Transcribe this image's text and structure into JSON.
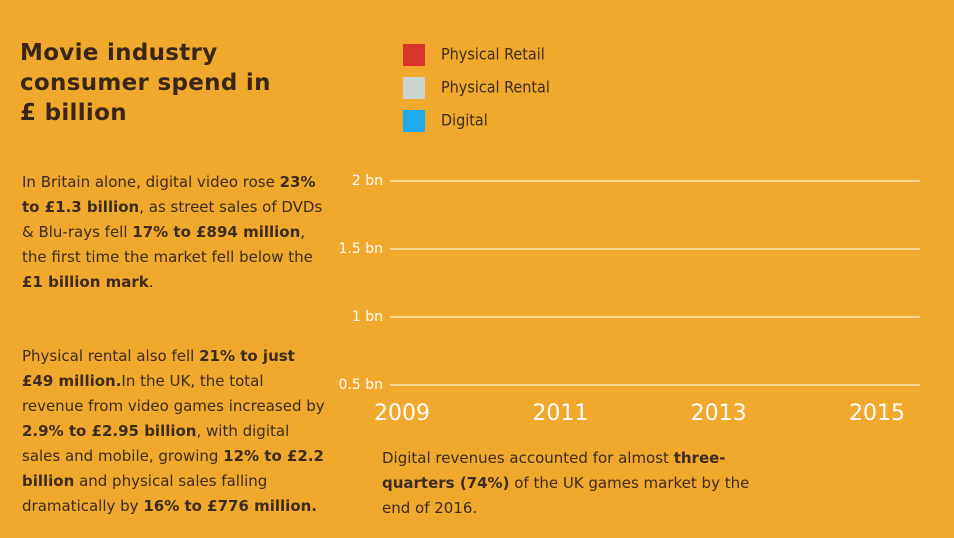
{
  "chart_data": {
    "type": "line",
    "title": "Movie industry consumer spend in £ billion",
    "categories": [
      "2009",
      "2011",
      "2013",
      "2015"
    ],
    "series": [
      {
        "name": "Physical Retail",
        "color": "#d9342b",
        "values": [
          null,
          null,
          null,
          null
        ]
      },
      {
        "name": "Physical Rental",
        "color": "#c9d3d0",
        "values": [
          null,
          null,
          null,
          null
        ]
      },
      {
        "name": "Digital",
        "color": "#1eaaf1",
        "values": [
          null,
          null,
          null,
          null
        ]
      }
    ],
    "ylim": [
      0.5,
      2
    ],
    "yticks": [
      {
        "value": 0.5,
        "label": "0.5 bn"
      },
      {
        "value": 1,
        "label": "1 bn"
      },
      {
        "value": 1.5,
        "label": "1.5 bn"
      },
      {
        "value": 2,
        "label": "2 bn"
      }
    ],
    "grid": true,
    "annotations": [
      [
        "In Britain alone, digital video rose ",
        "23% to £1.3 billion",
        ", as street sales of DVDs & Blu-rays fell ",
        "17% to £894 million",
        ", the first time the market fell below the ",
        "£1 billion mark",
        "."
      ],
      [
        "Physical rental also fell ",
        "21% to just £49 million.",
        "In the UK, the total revenue from video games increased by ",
        "2.9% to £2.95 billion",
        ", with digital sales and mobile, growing ",
        "12% to £2.2 billion",
        " and physical sales falling dramatically by ",
        "16% to £776 million."
      ]
    ],
    "note": [
      "Digital revenues accounted for almost ",
      "three-quarters (74%)",
      " of the UK games market by the end of 2016."
    ]
  }
}
